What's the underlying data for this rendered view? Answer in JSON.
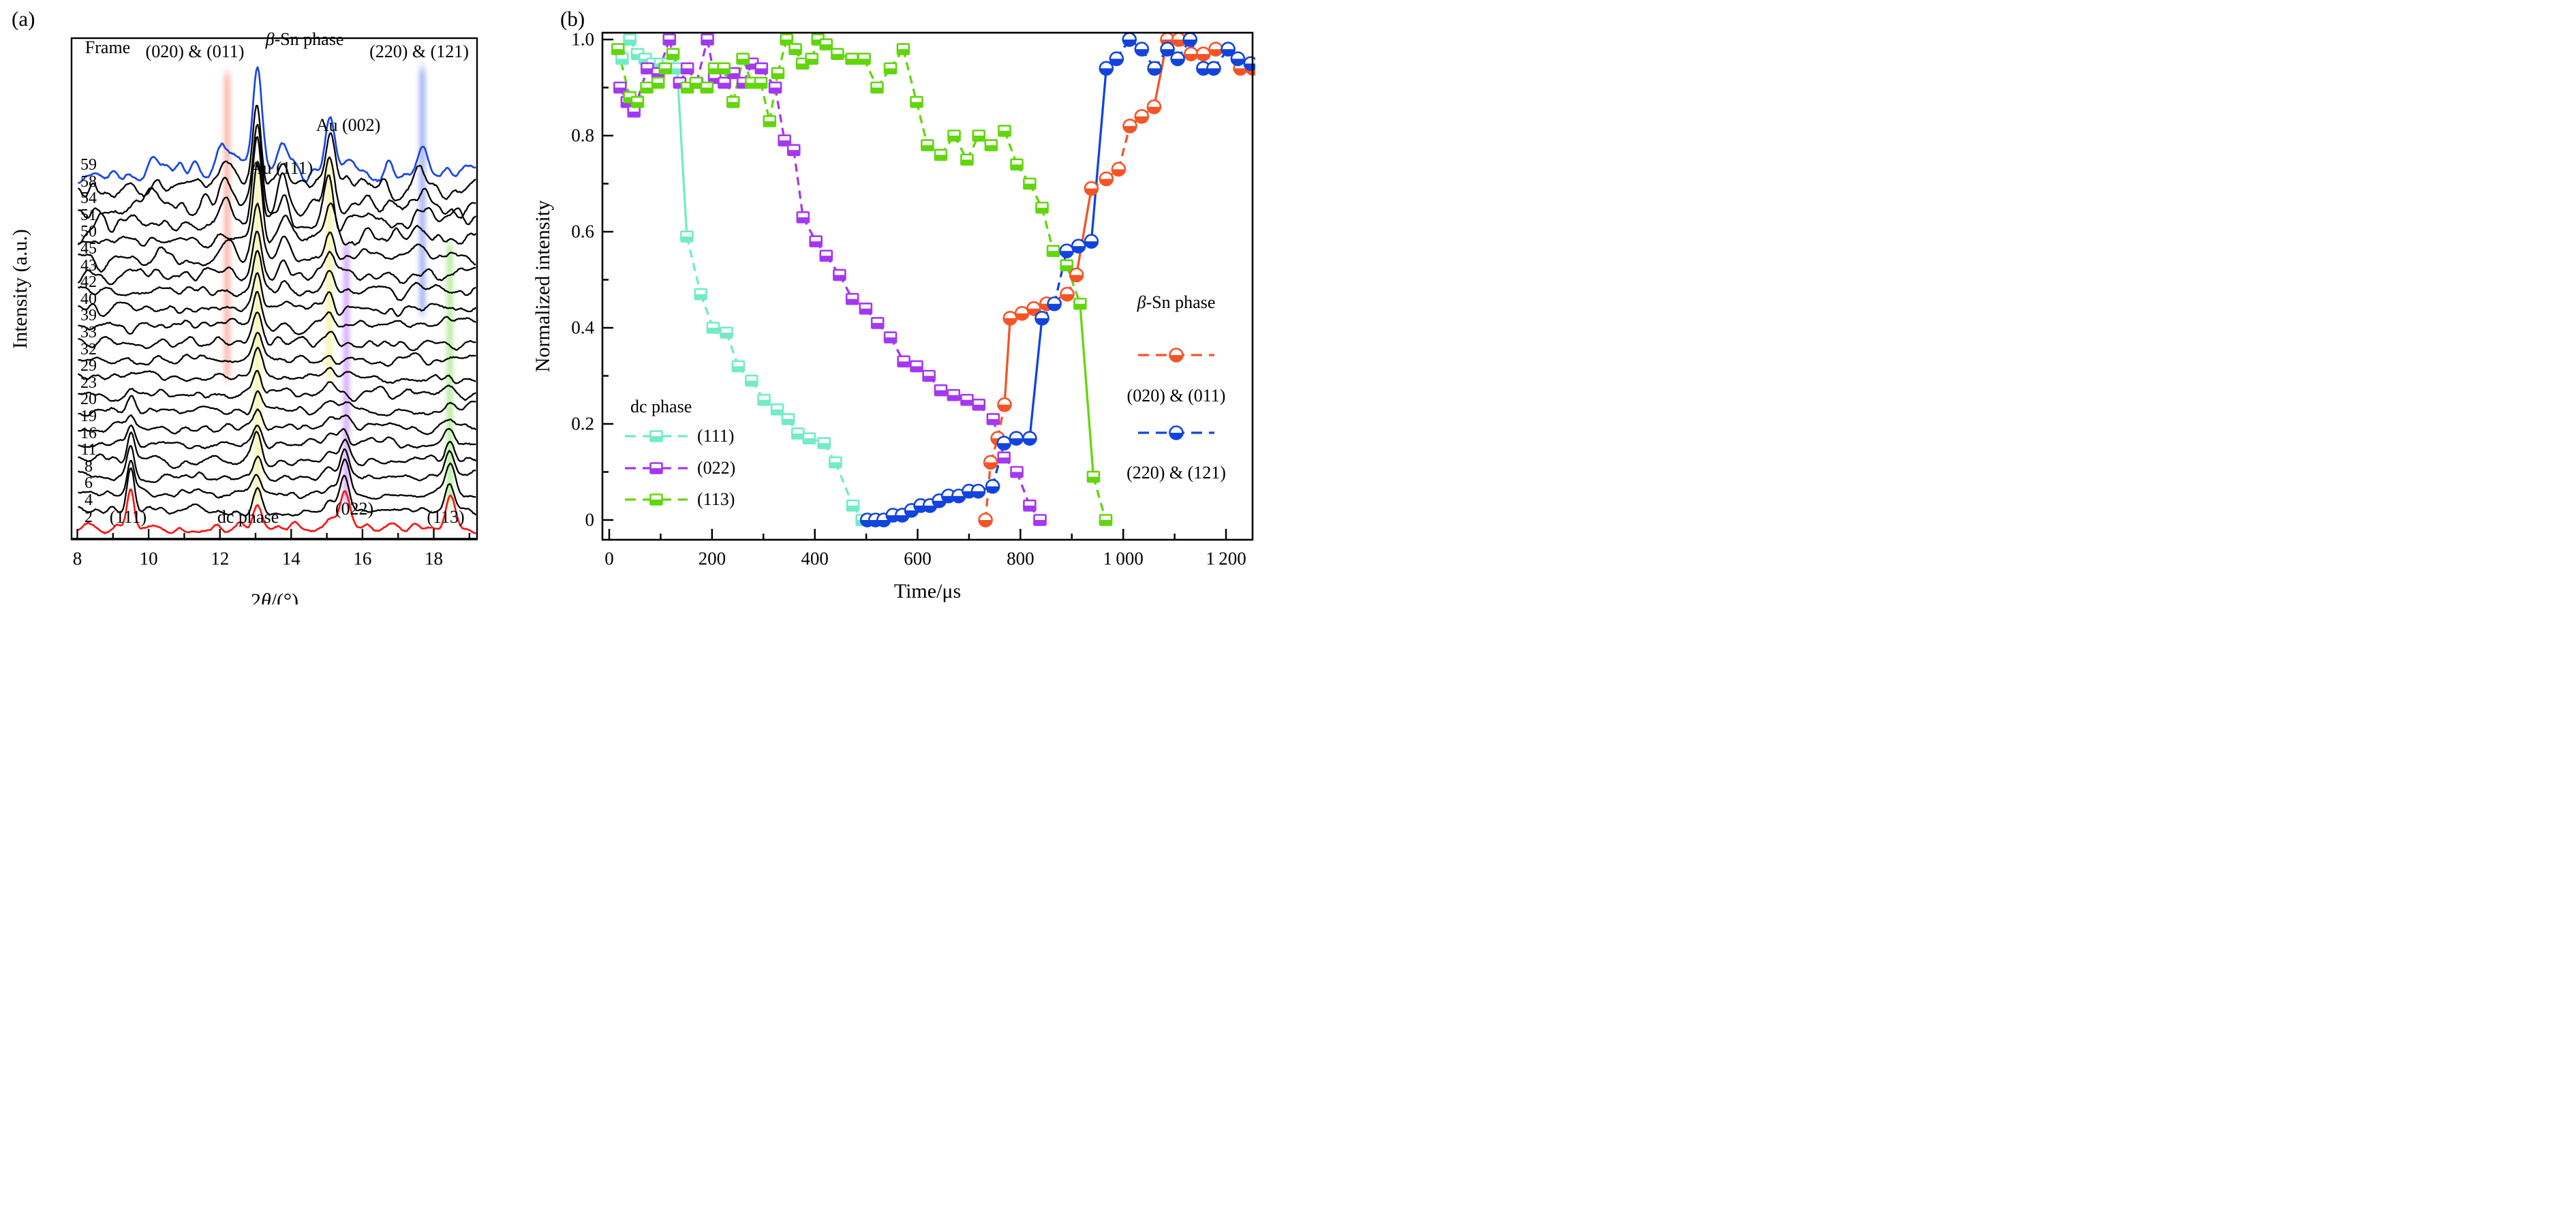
{
  "figure": {
    "panel_a": {
      "label": "(a)",
      "y_label": "Intensity (a.u.)",
      "x_label_prefix": "2",
      "x_label_theta": "θ",
      "x_label_suffix": "/(°)",
      "frame_header": "Frame",
      "frame_numbers": [
        59,
        58,
        54,
        51,
        50,
        45,
        43,
        42,
        40,
        39,
        33,
        32,
        29,
        23,
        20,
        19,
        16,
        11,
        8,
        6,
        4,
        2
      ],
      "x_ticks": [
        8,
        10,
        12,
        14,
        16,
        18
      ],
      "x_tick_labels": [
        "8",
        "10",
        "12",
        "14",
        "16",
        "18"
      ],
      "annotations": {
        "ann_020_011": "(020) & (011)",
        "beta_sn_prefix": "β",
        "beta_sn_rest": "-Sn phase",
        "ann_220_121": "(220) & (121)",
        "au_002": "Au (002)",
        "au_111": "Au (111)",
        "ann_111": "(111)",
        "ann_dc": "dc phase",
        "ann_022": "(022)",
        "ann_113": "(113)"
      },
      "trace_colors": {
        "frame_59": "#1a46e8",
        "frame_2": "#fb1616",
        "others": "#000000"
      }
    },
    "panel_b": {
      "label": "(b)",
      "y_label": "Normalized intensity",
      "x_label": "Time/μs",
      "x_tick_labels": [
        "0",
        "200",
        "400",
        "600",
        "800",
        "1 000",
        "1 200"
      ],
      "y_tick_labels": [
        "0",
        "0.2",
        "0.4",
        "0.6",
        "0.8",
        "1.0"
      ],
      "legend_dc": {
        "title": "dc phase",
        "items": [
          {
            "label": "(111)"
          },
          {
            "label": "(022)"
          },
          {
            "label": "(113)"
          }
        ]
      },
      "legend_sn": {
        "title_prefix": "β",
        "title_rest": "-Sn phase",
        "items": [
          {
            "label": "(020) & (011)"
          },
          {
            "label": "(220) & (121)"
          }
        ]
      }
    }
  },
  "chart_data": [
    {
      "panel": "a",
      "type": "line",
      "subtype": "waterfall-XRD",
      "xlabel": "2theta/(deg)",
      "ylabel": "Intensity (a.u.)",
      "x_range": [
        8,
        19.2
      ],
      "x_ticks": [
        8,
        10,
        12,
        14,
        16,
        18
      ],
      "frames": [
        59,
        58,
        54,
        51,
        50,
        45,
        43,
        42,
        40,
        39,
        33,
        32,
        29,
        23,
        20,
        19,
        16,
        11,
        8,
        6,
        4,
        2
      ],
      "peaks": {
        "dc_phase": [
          {
            "hkl": "(111)",
            "two_theta": 9.5
          },
          {
            "hkl": "(022)",
            "two_theta": 15.5
          },
          {
            "hkl": "(113)",
            "two_theta": 18.45
          }
        ],
        "au": [
          {
            "hkl": "Au (111)",
            "two_theta": 13.05
          },
          {
            "hkl": "Au (002)",
            "two_theta": 15.08
          }
        ],
        "beta_sn": [
          {
            "hkl": "(020) & (011)",
            "two_theta": 12.2
          },
          {
            "hkl": "(220) & (121)",
            "two_theta": 17.68
          }
        ]
      },
      "highlight_bands": [
        {
          "two_theta": 12.2,
          "color": "#ff5a3c",
          "y_span": [
            0.07,
            0.68
          ]
        },
        {
          "two_theta": 13.05,
          "color": "#e8e83a",
          "y_span": [
            0.25,
            0.93
          ]
        },
        {
          "two_theta": 15.07,
          "color": "#e8e83a",
          "y_span": [
            0.24,
            0.68
          ]
        },
        {
          "two_theta": 15.55,
          "color": "#a43cf2",
          "y_span": [
            0.41,
            0.93
          ]
        },
        {
          "two_theta": 17.68,
          "color": "#2f52e8",
          "y_span": [
            0.06,
            0.55
          ]
        },
        {
          "two_theta": 18.45,
          "color": "#58d81e",
          "y_span": [
            0.41,
            0.93
          ]
        }
      ]
    },
    {
      "panel": "b",
      "type": "scatter",
      "subtype": "line-scatter",
      "title": "",
      "xlabel": "Time/us",
      "ylabel": "Normalized intensity",
      "xlim": [
        0,
        1265
      ],
      "ylim": [
        -0.05,
        1.05
      ],
      "x_ticks": [
        0,
        200,
        400,
        600,
        800,
        1000,
        1200
      ],
      "y_ticks": [
        0,
        0.2,
        0.4,
        0.6,
        0.8,
        1.0
      ],
      "legend_position": "inside",
      "series": [
        {
          "name": "dc (111)",
          "marker": "half-square",
          "color": "#72ecc5",
          "points": [
            [
              25,
              0.96
            ],
            [
              40,
              1.0
            ],
            [
              55,
              0.97
            ],
            [
              70,
              0.96
            ],
            [
              85,
              0.95
            ],
            [
              100,
              0.95
            ],
            [
              115,
              0.95
            ],
            [
              132,
              0.94
            ],
            [
              151,
              0.59
            ],
            [
              178,
              0.47
            ],
            [
              202,
              0.4
            ],
            [
              228,
              0.39
            ],
            [
              251,
              0.32
            ],
            [
              277,
              0.29
            ],
            [
              301,
              0.25
            ],
            [
              327,
              0.23
            ],
            [
              348,
              0.21
            ],
            [
              367,
              0.18
            ],
            [
              389,
              0.17
            ],
            [
              418,
              0.16
            ],
            [
              440,
              0.12
            ],
            [
              474,
              0.03
            ],
            [
              492,
              0.0
            ],
            [
              508,
              0.0
            ]
          ]
        },
        {
          "name": "dc (022)",
          "marker": "half-square",
          "color": "#a438f0",
          "points": [
            [
              21,
              0.9
            ],
            [
              35,
              0.87
            ],
            [
              48,
              0.85
            ],
            [
              74,
              0.94
            ],
            [
              95,
              0.93
            ],
            [
              117,
              1.0
            ],
            [
              137,
              0.91
            ],
            [
              152,
              0.94
            ],
            [
              170,
              0.91
            ],
            [
              191,
              1.0
            ],
            [
              205,
              0.92
            ],
            [
              224,
              0.91
            ],
            [
              242,
              0.93
            ],
            [
              261,
              0.91
            ],
            [
              278,
              0.95
            ],
            [
              296,
              0.94
            ],
            [
              323,
              0.9
            ],
            [
              341,
              0.79
            ],
            [
              359,
              0.77
            ],
            [
              377,
              0.63
            ],
            [
              402,
              0.58
            ],
            [
              422,
              0.55
            ],
            [
              448,
              0.51
            ],
            [
              473,
              0.46
            ],
            [
              499,
              0.44
            ],
            [
              522,
              0.41
            ],
            [
              547,
              0.38
            ],
            [
              573,
              0.33
            ],
            [
              598,
              0.32
            ],
            [
              622,
              0.3
            ],
            [
              645,
              0.27
            ],
            [
              670,
              0.26
            ],
            [
              696,
              0.25
            ],
            [
              719,
              0.24
            ],
            [
              747,
              0.21
            ],
            [
              768,
              0.13
            ],
            [
              793,
              0.1
            ],
            [
              818,
              0.03
            ],
            [
              838,
              0.0
            ]
          ]
        },
        {
          "name": "dc (113)",
          "marker": "half-square",
          "color": "#62d60c",
          "points": [
            [
              17,
              0.98
            ],
            [
              40,
              0.88
            ],
            [
              55,
              0.87
            ],
            [
              73,
              0.9
            ],
            [
              95,
              0.91
            ],
            [
              109,
              0.94
            ],
            [
              124,
              0.97
            ],
            [
              152,
              0.9
            ],
            [
              169,
              0.91
            ],
            [
              190,
              0.9
            ],
            [
              205,
              0.94
            ],
            [
              223,
              0.94
            ],
            [
              241,
              0.87
            ],
            [
              260,
              0.96
            ],
            [
              277,
              0.91
            ],
            [
              295,
              0.91
            ],
            [
              312,
              0.83
            ],
            [
              328,
              0.93
            ],
            [
              345,
              1.0
            ],
            [
              362,
              0.98
            ],
            [
              376,
              0.95
            ],
            [
              394,
              0.96
            ],
            [
              406,
              1.0
            ],
            [
              422,
              0.99
            ],
            [
              444,
              0.97
            ],
            [
              472,
              0.96
            ],
            [
              496,
              0.96
            ],
            [
              521,
              0.9
            ],
            [
              547,
              0.94
            ],
            [
              572,
              0.98
            ],
            [
              598,
              0.87
            ],
            [
              619,
              0.78
            ],
            [
              645,
              0.76
            ],
            [
              671,
              0.8
            ],
            [
              696,
              0.75
            ],
            [
              719,
              0.8
            ],
            [
              743,
              0.78
            ],
            [
              769,
              0.81
            ],
            [
              793,
              0.74
            ],
            [
              818,
              0.7
            ],
            [
              842,
              0.65
            ],
            [
              864,
              0.56
            ],
            [
              890,
              0.53
            ],
            [
              916,
              0.45
            ],
            [
              942,
              0.09
            ],
            [
              966,
              0.0
            ]
          ]
        },
        {
          "name": "beta-Sn (020) & (011)",
          "marker": "half-circle",
          "color": "#f55426",
          "points": [
            [
              732,
              0.0
            ],
            [
              742,
              0.12
            ],
            [
              756,
              0.17
            ],
            [
              769,
              0.24
            ],
            [
              780,
              0.42
            ],
            [
              803,
              0.43
            ],
            [
              826,
              0.44
            ],
            [
              851,
              0.45
            ],
            [
              891,
              0.47
            ],
            [
              909,
              0.51
            ],
            [
              938,
              0.69
            ],
            [
              967,
              0.71
            ],
            [
              991,
              0.73
            ],
            [
              1013,
              0.82
            ],
            [
              1036,
              0.84
            ],
            [
              1060,
              0.86
            ],
            [
              1086,
              1.0
            ],
            [
              1108,
              1.0
            ],
            [
              1132,
              0.97
            ],
            [
              1156,
              0.97
            ],
            [
              1180,
              0.98
            ],
            [
              1204,
              0.98
            ],
            [
              1228,
              0.94
            ],
            [
              1252,
              0.94
            ]
          ]
        },
        {
          "name": "beta-Sn (220) & (121)",
          "marker": "half-circle",
          "color": "#1244dd",
          "points": [
            [
              502,
              0.0
            ],
            [
              518,
              0.0
            ],
            [
              534,
              0.0
            ],
            [
              552,
              0.01
            ],
            [
              570,
              0.01
            ],
            [
              588,
              0.02
            ],
            [
              606,
              0.03
            ],
            [
              624,
              0.03
            ],
            [
              642,
              0.04
            ],
            [
              660,
              0.05
            ],
            [
              680,
              0.05
            ],
            [
              700,
              0.06
            ],
            [
              718,
              0.06
            ],
            [
              746,
              0.07
            ],
            [
              768,
              0.16
            ],
            [
              792,
              0.17
            ],
            [
              818,
              0.17
            ],
            [
              842,
              0.42
            ],
            [
              866,
              0.45
            ],
            [
              890,
              0.56
            ],
            [
              913,
              0.57
            ],
            [
              938,
              0.58
            ],
            [
              967,
              0.94
            ],
            [
              987,
              0.96
            ],
            [
              1012,
              1.0
            ],
            [
              1036,
              0.98
            ],
            [
              1061,
              0.94
            ],
            [
              1086,
              0.98
            ],
            [
              1106,
              0.96
            ],
            [
              1130,
              1.0
            ],
            [
              1156,
              0.94
            ],
            [
              1176,
              0.94
            ],
            [
              1204,
              0.98
            ],
            [
              1223,
              0.96
            ],
            [
              1248,
              0.95
            ]
          ]
        }
      ]
    }
  ]
}
